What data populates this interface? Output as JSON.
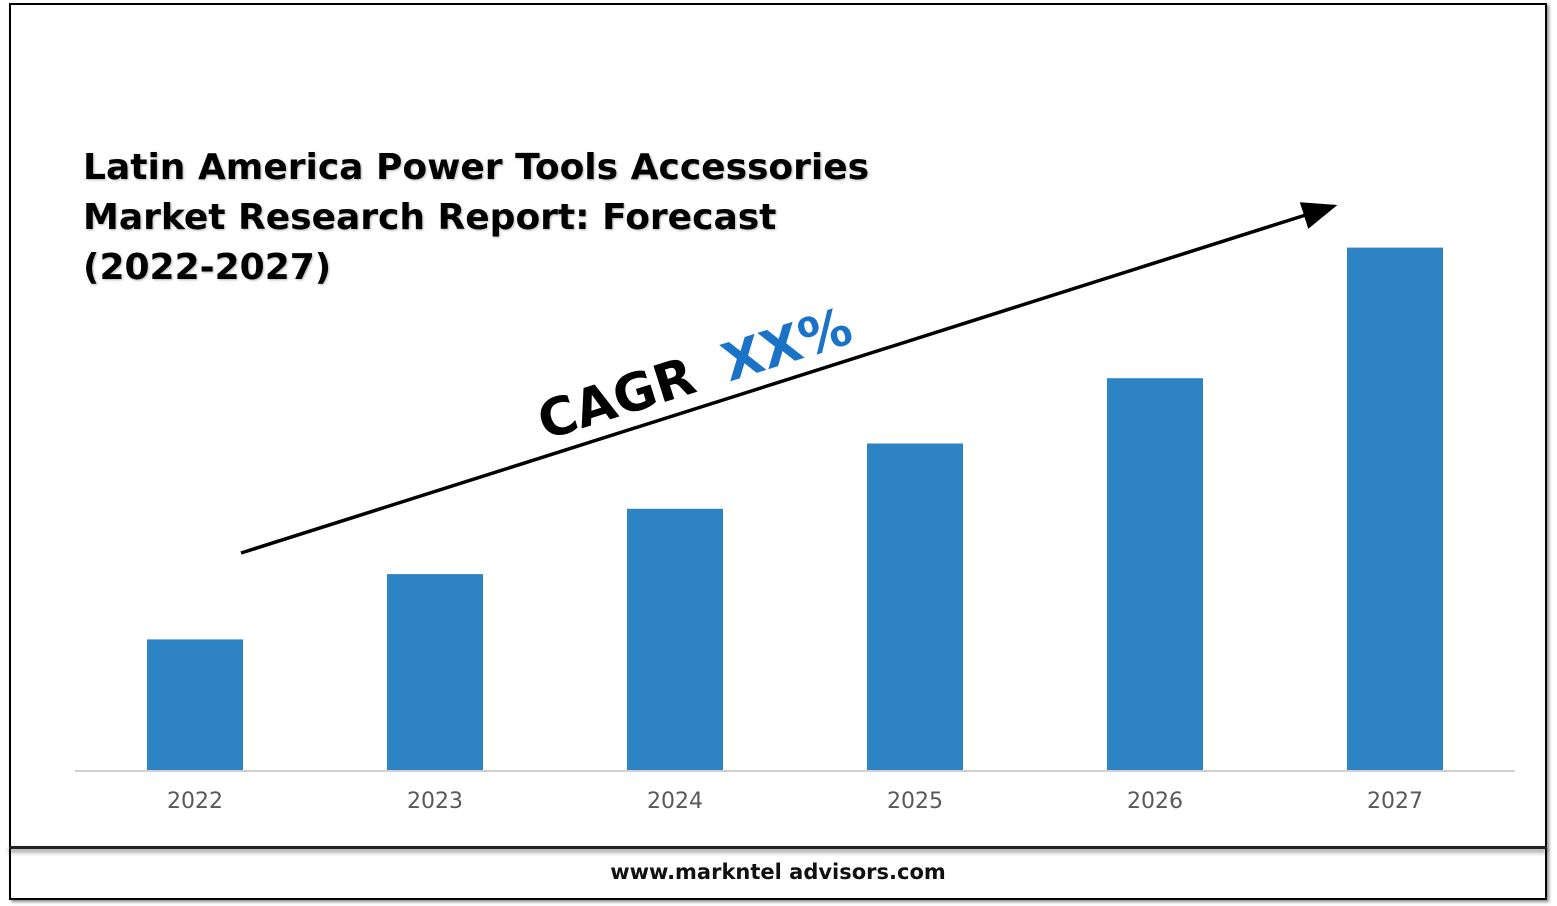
{
  "title_lines": [
    "Latin America Power Tools Accessories",
    "Market Research Report: Forecast",
    "(2022-2027)"
  ],
  "annotation": {
    "prefix": "CAGR",
    "value": "XX%",
    "prefix_color": "#000000",
    "value_color": "#1a73c7"
  },
  "footer": {
    "url": "www.markntel advisors.com"
  },
  "chart_data": {
    "type": "bar",
    "categories": [
      "2022",
      "2023",
      "2024",
      "2025",
      "2026",
      "2027"
    ],
    "values": [
      20,
      30,
      40,
      50,
      60,
      80
    ],
    "ylim": [
      0,
      100
    ],
    "grid": false,
    "legend": "none",
    "bar_color": "#2e83c4",
    "y_axis_visible": false,
    "trend_arrow": "rising, from 2022 to 2027"
  }
}
